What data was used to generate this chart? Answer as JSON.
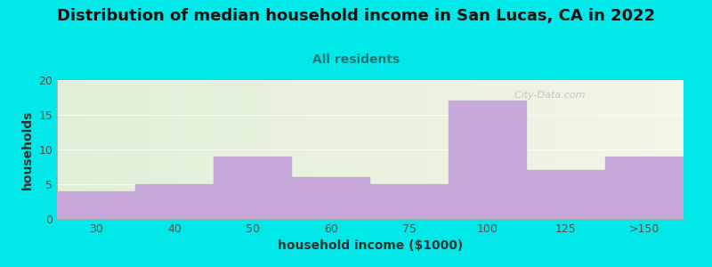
{
  "title": "Distribution of median household income in San Lucas, CA in 2022",
  "subtitle": "All residents",
  "xlabel": "household income ($1000)",
  "ylabel": "households",
  "categories": [
    "30",
    "40",
    "50",
    "60",
    "75",
    "100",
    "125",
    ">150"
  ],
  "values": [
    4,
    5,
    9,
    6,
    5,
    17,
    7,
    9
  ],
  "bar_color": "#c8a8d8",
  "bar_edgecolor": "#c8a8d8",
  "ylim": [
    0,
    20
  ],
  "yticks": [
    0,
    5,
    10,
    15,
    20
  ],
  "background_outer": "#00e8e8",
  "background_plot_left": "#e0f0d8",
  "background_plot_right": "#f5f5e8",
  "title_fontsize": 13,
  "subtitle_fontsize": 10,
  "axis_label_fontsize": 10,
  "subtitle_color": "#227777",
  "title_color": "#111111",
  "tick_label_color": "#555555",
  "watermark": "  City-Data.com",
  "watermark_color": "#c0c0c0"
}
